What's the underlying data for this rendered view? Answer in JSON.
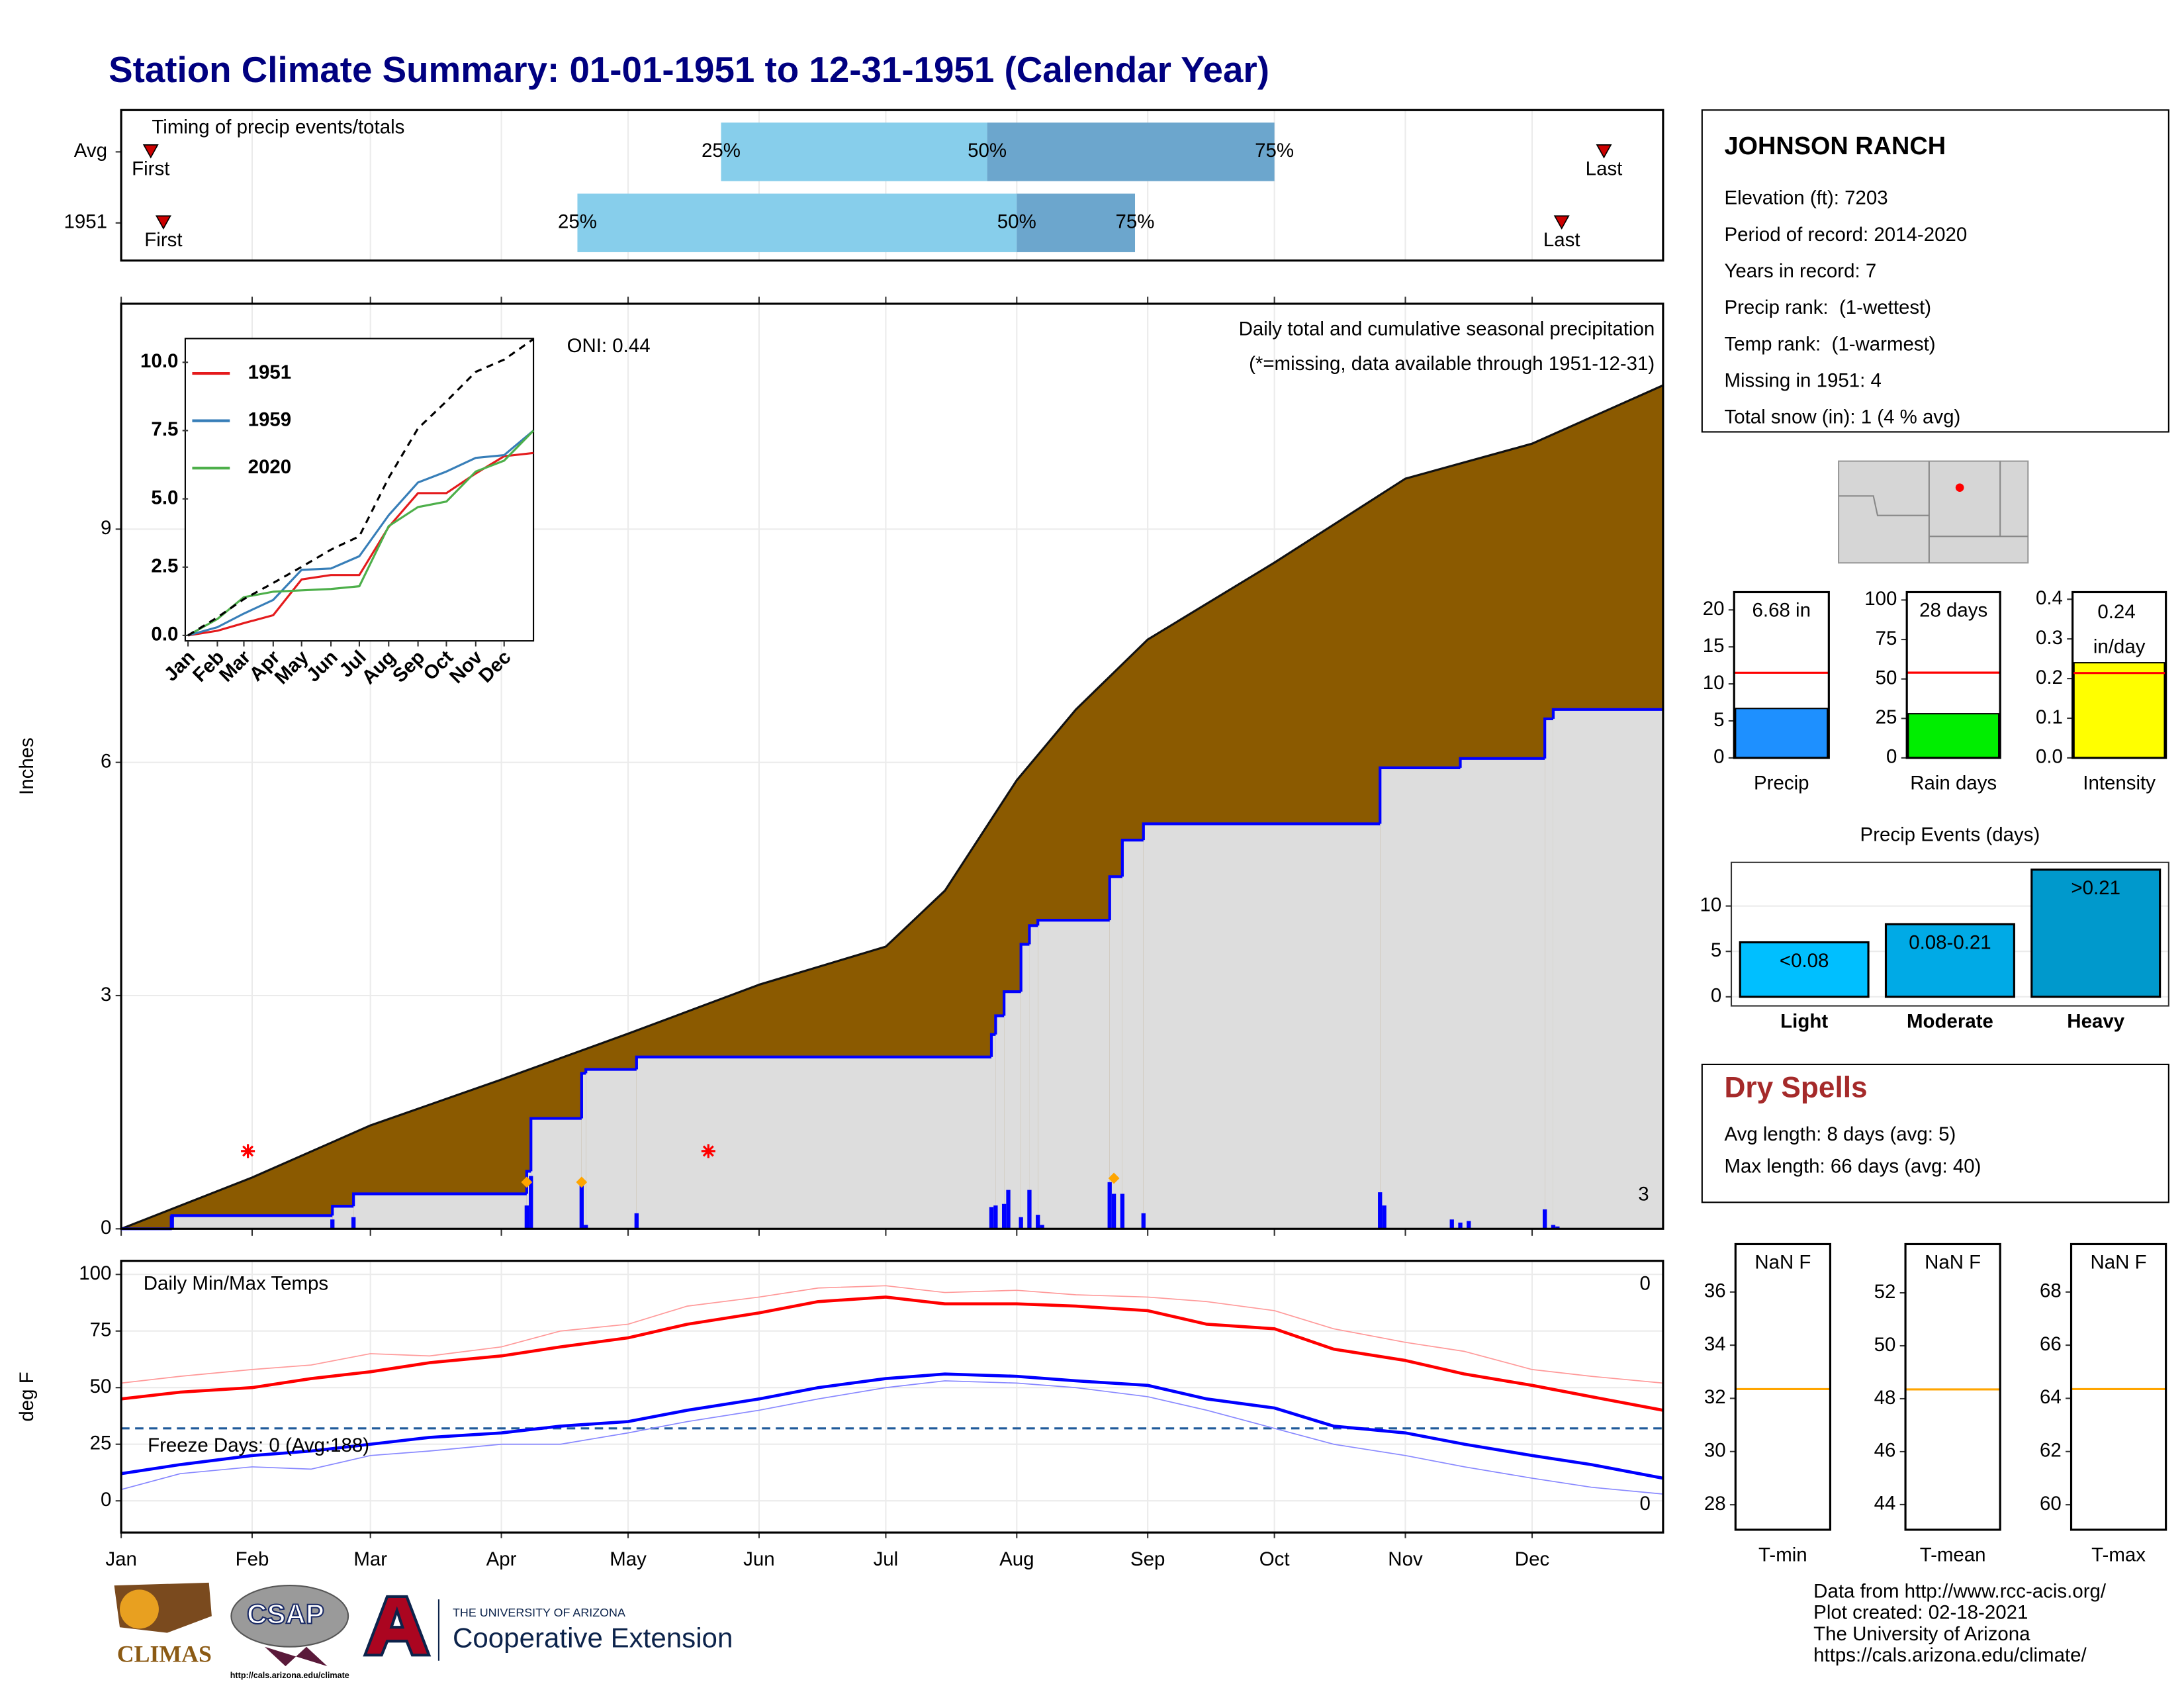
{
  "title": "Station Climate Summary: 01-01-1951 to 12-31-1951 (Calendar Year)",
  "station": {
    "name": "JOHNSON RANCH",
    "lines": [
      "Elevation (ft): 7203",
      "Period of record: 2014-2020",
      "Years in record: 7",
      "Precip rank:  (1-wettest)",
      "Temp rank:  (1-warmest)",
      "Missing in 1951: 4",
      "Total snow (in): 1 (4 % avg)"
    ]
  },
  "dry_spells": {
    "title": "Dry Spells",
    "lines": [
      "Avg length: 8 days (avg: 5)",
      "Max length: 66 days (avg: 40)"
    ]
  },
  "credits": [
    "Data from http://www.rcc-acis.org/",
    "Plot created: 02-18-2021",
    "The University of Arizona",
    "https://cals.arizona.edu/climate/"
  ],
  "logos": [
    "CLIMAS",
    "CSAP",
    "THE UNIVERSITY OF ARIZONA",
    "Cooperative Extension",
    "http://cals.arizona.edu/climate"
  ],
  "chart_data": [
    {
      "type": "timing",
      "title": "Timing of precip events/totals",
      "categories": [
        "Avg",
        "1951"
      ],
      "first": [
        8,
        11
      ],
      "q25": [
        143,
        109
      ],
      "q50": [
        206,
        213
      ],
      "q75": [
        274,
        241
      ],
      "last": [
        352,
        342
      ],
      "first_label": "First",
      "last_label": "Last",
      "quantile_labels": [
        "25%",
        "50%",
        "75%"
      ],
      "colors": [
        "#87ceeb",
        "#6ca6cd"
      ],
      "marker_color": "#cc0000",
      "xlim": [
        1,
        366
      ],
      "xticks": [
        1,
        32,
        60,
        91,
        121,
        152,
        182,
        213,
        244,
        274,
        305,
        335
      ]
    },
    {
      "type": "area",
      "title": "Daily total and cumulative seasonal precipitation",
      "subtitle": "(*=missing, data available through 1951-12-31)",
      "annotation": "ONI: 0.44",
      "ylabel": "Inches",
      "xlim": [
        1,
        366
      ],
      "xticks": [
        1,
        32,
        60,
        91,
        121,
        152,
        182,
        213,
        244,
        274,
        305,
        335
      ],
      "ylim": [
        0,
        11.9
      ],
      "yticks": [
        0,
        3,
        6,
        9
      ],
      "grid": true,
      "average": {
        "color": "#8b5a00",
        "x": [
          1,
          32,
          60,
          91,
          121,
          152,
          182,
          196,
          213,
          227,
          244,
          274,
          305,
          335,
          366
        ],
        "values": [
          0,
          0.66,
          1.33,
          1.92,
          2.51,
          3.14,
          3.63,
          4.35,
          5.77,
          6.68,
          7.58,
          8.57,
          9.65,
          10.1,
          10.85
        ]
      },
      "cumulative": {
        "color": "#0000ff",
        "fill": "#dddddd",
        "x": [
          1,
          13,
          51,
          56,
          97,
          98,
          110,
          111,
          123,
          207,
          208,
          210,
          214,
          216,
          218,
          235,
          238,
          243,
          299,
          318,
          338,
          340
        ],
        "values": [
          0,
          0.17,
          0.29,
          0.45,
          0.74,
          1.42,
          2.0,
          2.05,
          2.21,
          2.5,
          2.74,
          3.05,
          3.66,
          3.9,
          3.97,
          4.53,
          5.0,
          5.21,
          5.93,
          6.05,
          6.56,
          6.68
        ]
      },
      "daily": {
        "color": "#0000ff",
        "x": [
          13,
          51,
          56,
          97,
          98,
          110,
          111,
          123,
          207,
          208,
          210,
          211,
          214,
          216,
          218,
          219,
          235,
          236,
          238,
          243,
          299,
          300,
          316,
          318,
          320,
          338,
          340,
          341
        ],
        "values": [
          0.17,
          0.12,
          0.15,
          0.3,
          0.68,
          0.58,
          0.05,
          0.2,
          0.28,
          0.3,
          0.32,
          0.5,
          0.15,
          0.5,
          0.18,
          0.05,
          0.6,
          0.45,
          0.45,
          0.2,
          0.47,
          0.3,
          0.12,
          0.08,
          0.1,
          0.25,
          0.05,
          0.03
        ]
      },
      "events": {
        "color": "#ffa500",
        "x": [
          97,
          110,
          236
        ],
        "values": [
          0.6,
          0.6,
          0.65
        ]
      },
      "missing": {
        "color": "#ff0000",
        "x": [
          31,
          140
        ],
        "values": [
          1.0,
          1.0
        ]
      },
      "corner_label": "3",
      "corner_color": "#ffa500"
    },
    {
      "type": "line",
      "xlim": [
        1,
        366
      ],
      "xticks": [
        {
          "value": 1,
          "label": "Jan"
        },
        {
          "value": 32,
          "label": "Feb"
        },
        {
          "value": 60,
          "label": "Mar"
        },
        {
          "value": 91,
          "label": "Apr"
        },
        {
          "value": 121,
          "label": "May"
        },
        {
          "value": 152,
          "label": "Jun"
        },
        {
          "value": 182,
          "label": "Jul"
        },
        {
          "value": 213,
          "label": "Aug"
        },
        {
          "value": 244,
          "label": "Sep"
        },
        {
          "value": 274,
          "label": "Oct"
        },
        {
          "value": 305,
          "label": "Nov"
        },
        {
          "value": 335,
          "label": "Dec"
        }
      ],
      "ylim": [
        -0.2,
        10.87
      ],
      "yticks": [
        {
          "value": 0,
          "label": "0.0"
        },
        {
          "value": 2.5,
          "label": "2.5"
        },
        {
          "value": 5,
          "label": "5.0"
        },
        {
          "value": 7.5,
          "label": "7.5"
        },
        {
          "value": 10,
          "label": "10.0"
        }
      ],
      "x": [
        1,
        32,
        60,
        91,
        121,
        152,
        182,
        213,
        244,
        274,
        305,
        335,
        366
      ],
      "series": [
        {
          "name": "1951",
          "color": "#e41a1c",
          "values": [
            0,
            0.17,
            0.45,
            0.74,
            2.05,
            2.21,
            2.21,
            3.97,
            5.21,
            5.21,
            5.93,
            6.56,
            6.68
          ]
        },
        {
          "name": "1959",
          "color": "#377eb8",
          "values": [
            0,
            0.3,
            0.8,
            1.3,
            2.4,
            2.45,
            2.9,
            4.4,
            5.6,
            6.0,
            6.5,
            6.6,
            7.5
          ]
        },
        {
          "name": "2020",
          "color": "#4daf4a",
          "values": [
            0,
            0.6,
            1.4,
            1.6,
            1.65,
            1.7,
            1.8,
            4.0,
            4.7,
            4.9,
            6.0,
            6.4,
            7.5
          ]
        }
      ],
      "average": {
        "color": "#000000",
        "dashed": true,
        "values": [
          0,
          0.66,
          1.33,
          1.92,
          2.51,
          3.14,
          3.63,
          5.77,
          7.58,
          8.57,
          9.65,
          10.1,
          10.85
        ]
      }
    },
    {
      "type": "line",
      "title": "Daily Min/Max Temps",
      "ylabel": "deg F",
      "xlim": [
        1,
        366
      ],
      "xticks": [
        {
          "value": 1,
          "label": "Jan"
        },
        {
          "value": 32,
          "label": "Feb"
        },
        {
          "value": 60,
          "label": "Mar"
        },
        {
          "value": 91,
          "label": "Apr"
        },
        {
          "value": 121,
          "label": "May"
        },
        {
          "value": 152,
          "label": "Jun"
        },
        {
          "value": 182,
          "label": "Jul"
        },
        {
          "value": 213,
          "label": "Aug"
        },
        {
          "value": 244,
          "label": "Sep"
        },
        {
          "value": 274,
          "label": "Oct"
        },
        {
          "value": 305,
          "label": "Nov"
        },
        {
          "value": 335,
          "label": "Dec"
        }
      ],
      "ylim": [
        -14,
        106
      ],
      "yticks": [
        0,
        25,
        50,
        75,
        100
      ],
      "grid": true,
      "x": [
        1,
        15,
        32,
        46,
        60,
        74,
        91,
        105,
        121,
        135,
        152,
        166,
        182,
        196,
        213,
        227,
        244,
        258,
        274,
        288,
        305,
        319,
        335,
        349,
        366
      ],
      "series": [
        {
          "color": "#ff9999",
          "width": 0.8,
          "values": [
            52,
            55,
            58,
            60,
            65,
            64,
            68,
            75,
            78,
            86,
            90,
            94,
            95,
            92,
            93,
            91,
            90,
            88,
            84,
            76,
            70,
            66,
            58,
            55,
            52
          ]
        },
        {
          "color": "#ff0000",
          "width": 2.2,
          "values": [
            45,
            48,
            50,
            54,
            57,
            61,
            64,
            68,
            72,
            78,
            83,
            88,
            90,
            87,
            87,
            86,
            84,
            78,
            76,
            67,
            62,
            56,
            51,
            46,
            40
          ]
        },
        {
          "color": "#8888ff",
          "width": 0.8,
          "values": [
            5,
            12,
            15,
            14,
            20,
            22,
            25,
            25,
            30,
            35,
            40,
            45,
            50,
            53,
            52,
            50,
            46,
            40,
            32,
            25,
            20,
            15,
            10,
            6,
            3
          ]
        },
        {
          "color": "#0000ff",
          "width": 2.2,
          "values": [
            12,
            16,
            20,
            22,
            25,
            28,
            30,
            33,
            35,
            40,
            45,
            50,
            54,
            56,
            55,
            53,
            51,
            45,
            41,
            33,
            30,
            25,
            20,
            16,
            10
          ]
        }
      ],
      "freeze": 32,
      "freeze_color": "#1f5a9a",
      "freeze_label": "Freeze Days: 0 (Avg:188)",
      "max_label": "0",
      "min_label": "0"
    },
    {
      "type": "bar",
      "categories": [
        "Precip"
      ],
      "values": [
        6.68
      ],
      "value_labels": [
        "6.68 in"
      ],
      "color": "#1e90ff",
      "avg": [
        11.5
      ],
      "avg_color": "#ff0000",
      "ylim": [
        0,
        22.4
      ],
      "yticks": [
        0,
        5,
        10,
        15,
        20
      ]
    },
    {
      "type": "bar",
      "categories": [
        "Rain days"
      ],
      "values": [
        28
      ],
      "value_labels": [
        "28 days"
      ],
      "color": "#00ee00",
      "avg": [
        54
      ],
      "avg_color": "#ff0000",
      "ylim": [
        0,
        105
      ],
      "yticks": [
        0,
        25,
        50,
        75,
        100
      ]
    },
    {
      "type": "bar",
      "categories": [
        "Intensity"
      ],
      "values": [
        0.24
      ],
      "value_labels": [
        "0.24 in/day"
      ],
      "color": "#ffff00",
      "avg": [
        0.214
      ],
      "avg_color": "#ff0000",
      "ylim": [
        0,
        0.418
      ],
      "yticks": [
        {
          "value": 0,
          "label": "0.0"
        },
        {
          "value": 0.1,
          "label": "0.1"
        },
        {
          "value": 0.2,
          "label": "0.2"
        },
        {
          "value": 0.3,
          "label": "0.3"
        },
        {
          "value": 0.4,
          "label": "0.4"
        }
      ]
    },
    {
      "type": "bar",
      "title": "Precip Events (days)",
      "categories": [
        "Light",
        "Moderate",
        "Heavy"
      ],
      "values": [
        6,
        8,
        14
      ],
      "bin_labels": [
        "<0.08",
        "0.08-0.21",
        ">0.21"
      ],
      "colors": [
        "#00bfff",
        "#00aae6",
        "#0099cc"
      ],
      "ylim": [
        -1,
        14.8
      ],
      "yticks": [
        0,
        5,
        10
      ],
      "grid": true
    },
    {
      "type": "bar",
      "categories": [
        "T-min"
      ],
      "values": [
        null
      ],
      "value_labels": [
        "NaN F"
      ],
      "avg": [
        32.35
      ],
      "avg_color": "#ffa500",
      "ylim": [
        27.06,
        37.8
      ],
      "yticks": [
        28,
        30,
        32,
        34,
        36
      ]
    },
    {
      "type": "bar",
      "categories": [
        "T-mean"
      ],
      "values": [
        null
      ],
      "value_labels": [
        "NaN F"
      ],
      "avg": [
        48.35
      ],
      "avg_color": "#ffa500",
      "ylim": [
        43.05,
        53.84
      ],
      "yticks": [
        44,
        46,
        48,
        50,
        52
      ]
    },
    {
      "type": "bar",
      "categories": [
        "T-max"
      ],
      "values": [
        null
      ],
      "value_labels": [
        "NaN F"
      ],
      "avg": [
        64.35
      ],
      "avg_color": "#ffa500",
      "ylim": [
        59.06,
        69.8
      ],
      "yticks": [
        60,
        62,
        64,
        66,
        68
      ]
    }
  ]
}
